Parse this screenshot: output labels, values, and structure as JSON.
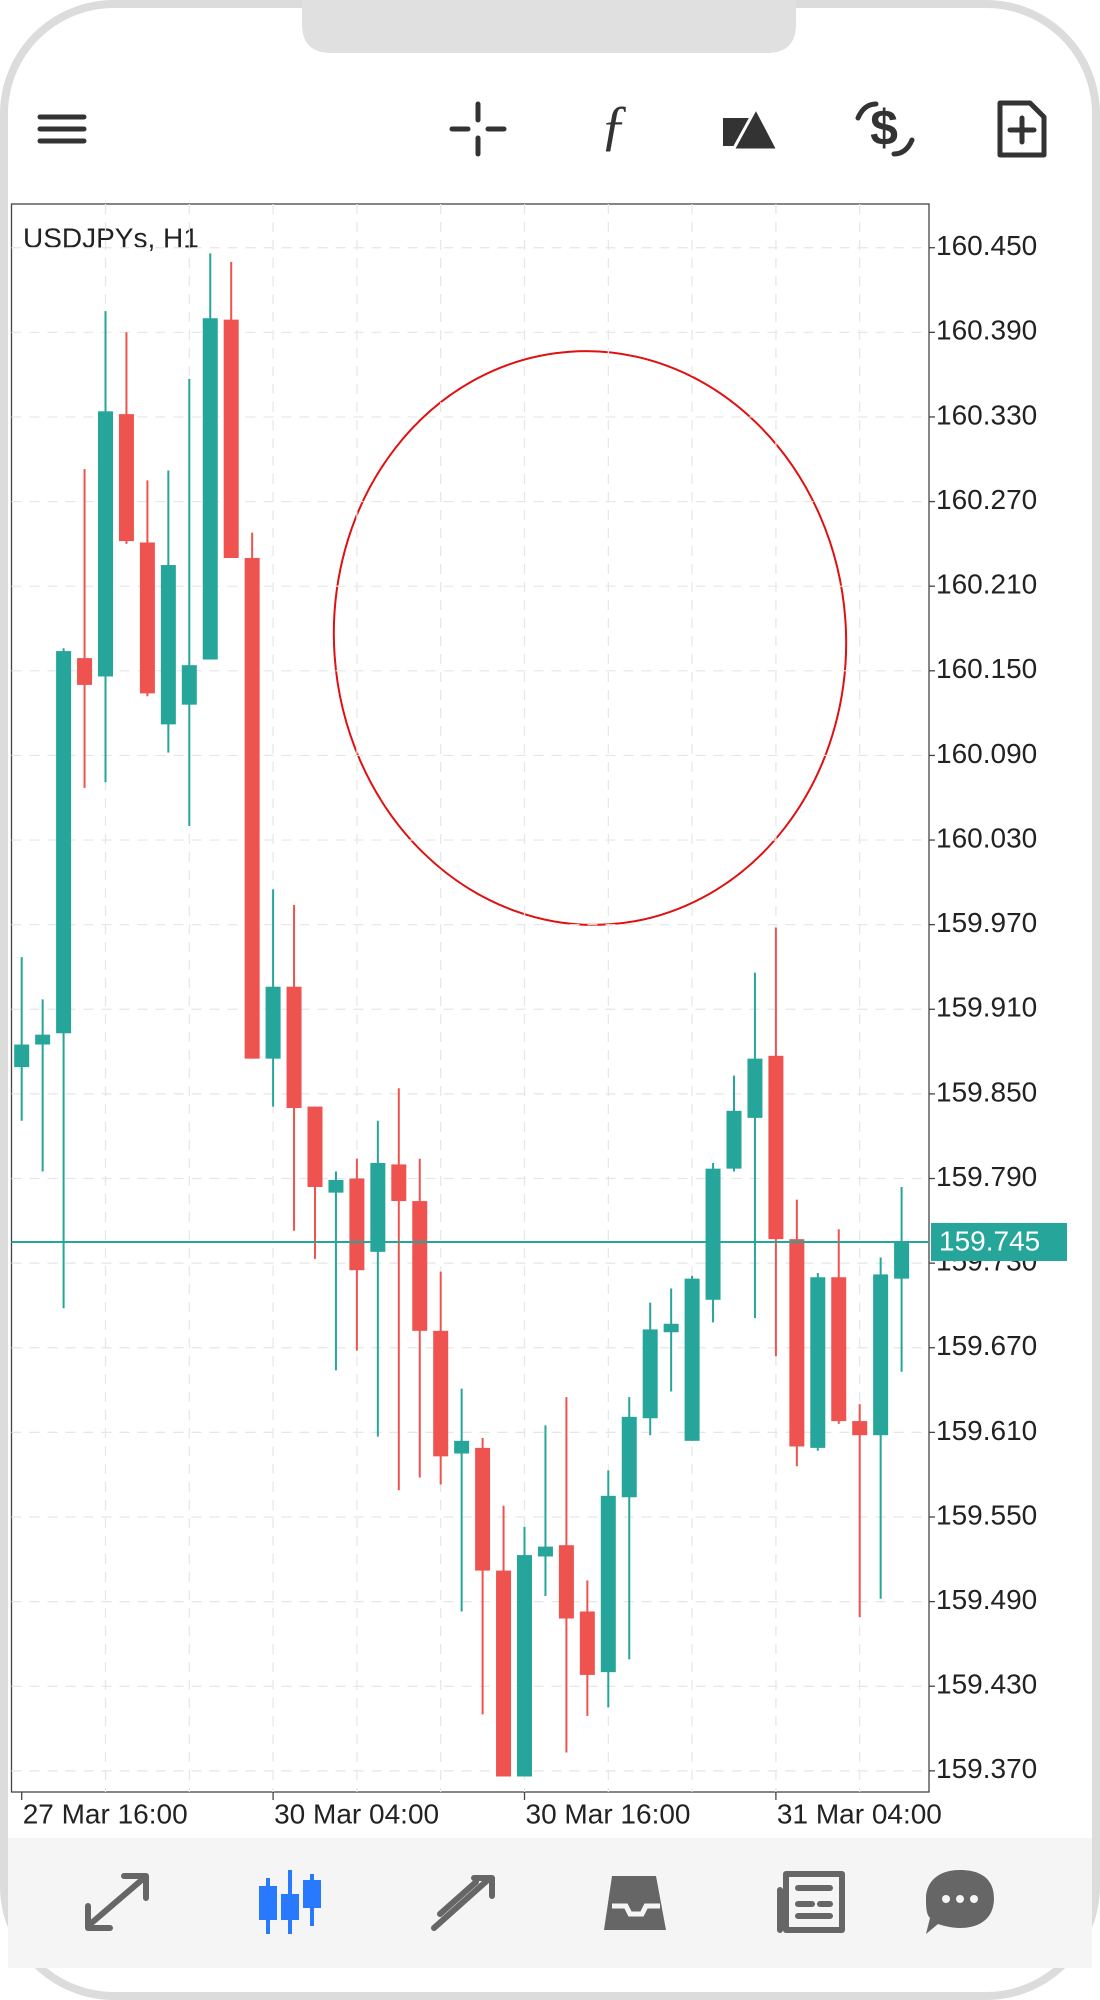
{
  "chart_data": {
    "type": "candlestick",
    "title": "USDJPYs, H1",
    "categories": [
      "27 Mar 16:00",
      null,
      null,
      null,
      null,
      null,
      null,
      null,
      null,
      null,
      null,
      null,
      "30 Mar 04:00",
      null,
      null,
      null,
      null,
      null,
      null,
      null,
      null,
      null,
      null,
      null,
      "30 Mar 16:00",
      null,
      null,
      null,
      null,
      null,
      null,
      null,
      null,
      null,
      null,
      null,
      "31 Mar 04:00",
      null,
      null,
      null,
      null,
      null,
      null
    ],
    "open": [
      159.869,
      159.885,
      159.893,
      160.159,
      160.146,
      160.332,
      160.241,
      160.112,
      160.126,
      160.158,
      160.399,
      160.23,
      159.875,
      159.926,
      159.841,
      159.78,
      159.79,
      159.738,
      159.8,
      159.774,
      159.682,
      159.595,
      159.599,
      159.512,
      159.366,
      159.522,
      159.53,
      159.483,
      159.44,
      159.564,
      159.62,
      159.681,
      159.604,
      159.704,
      159.797,
      159.833,
      159.877,
      159.747,
      159.599,
      159.72,
      159.618,
      159.608,
      159.719
    ],
    "high": [
      159.947,
      159.917,
      160.166,
      160.293,
      160.405,
      160.39,
      160.285,
      160.292,
      160.357,
      160.446,
      160.44,
      160.248,
      159.995,
      159.984,
      159.841,
      159.795,
      159.804,
      159.831,
      159.854,
      159.804,
      159.724,
      159.641,
      159.606,
      159.558,
      159.543,
      159.615,
      159.635,
      159.505,
      159.583,
      159.635,
      159.702,
      159.712,
      159.721,
      159.801,
      159.863,
      159.936,
      159.968,
      159.775,
      159.723,
      159.754,
      159.63,
      159.734,
      159.784
    ],
    "low": [
      159.831,
      159.795,
      159.698,
      160.067,
      160.071,
      160.24,
      160.132,
      160.092,
      160.04,
      160.158,
      160.23,
      159.875,
      159.841,
      159.753,
      159.733,
      159.654,
      159.668,
      159.607,
      159.569,
      159.578,
      159.573,
      159.483,
      159.41,
      159.366,
      159.366,
      159.494,
      159.383,
      159.409,
      159.415,
      159.449,
      159.608,
      159.639,
      159.604,
      159.688,
      159.795,
      159.691,
      159.664,
      159.586,
      159.597,
      159.616,
      159.479,
      159.492,
      159.653
    ],
    "close": [
      159.885,
      159.892,
      160.164,
      160.14,
      160.334,
      160.242,
      160.134,
      160.225,
      160.154,
      160.4,
      160.23,
      159.875,
      159.926,
      159.84,
      159.784,
      159.789,
      159.725,
      159.801,
      159.774,
      159.682,
      159.593,
      159.604,
      159.512,
      159.366,
      159.523,
      159.529,
      159.478,
      159.438,
      159.565,
      159.621,
      159.683,
      159.687,
      159.719,
      159.797,
      159.838,
      159.875,
      159.747,
      159.6,
      159.72,
      159.618,
      159.608,
      159.722,
      159.745
    ],
    "up_color": "#26a69a",
    "down_color": "#ef5350",
    "current_price": 159.745,
    "ylim": [
      159.355,
      160.481
    ],
    "yticks": [
      {
        "value": 159.37,
        "label": "159.370"
      },
      {
        "value": 159.43,
        "label": "159.430"
      },
      {
        "value": 159.49,
        "label": "159.490"
      },
      {
        "value": 159.55,
        "label": "159.550"
      },
      {
        "value": 159.61,
        "label": "159.610"
      },
      {
        "value": 159.67,
        "label": "159.670"
      },
      {
        "value": 159.73,
        "label": "159.730"
      },
      {
        "value": 159.79,
        "label": "159.790"
      },
      {
        "value": 159.85,
        "label": "159.850"
      },
      {
        "value": 159.91,
        "label": "159.910"
      },
      {
        "value": 159.97,
        "label": "159.970"
      },
      {
        "value": 160.03,
        "label": "160.030"
      },
      {
        "value": 160.09,
        "label": "160.090"
      },
      {
        "value": 160.15,
        "label": "160.150"
      },
      {
        "value": 160.21,
        "label": "160.210"
      },
      {
        "value": 160.27,
        "label": "160.270"
      },
      {
        "value": 160.33,
        "label": "160.330"
      },
      {
        "value": 160.39,
        "label": "160.390"
      },
      {
        "value": 160.45,
        "label": "160.450"
      }
    ],
    "grid": true
  }
}
